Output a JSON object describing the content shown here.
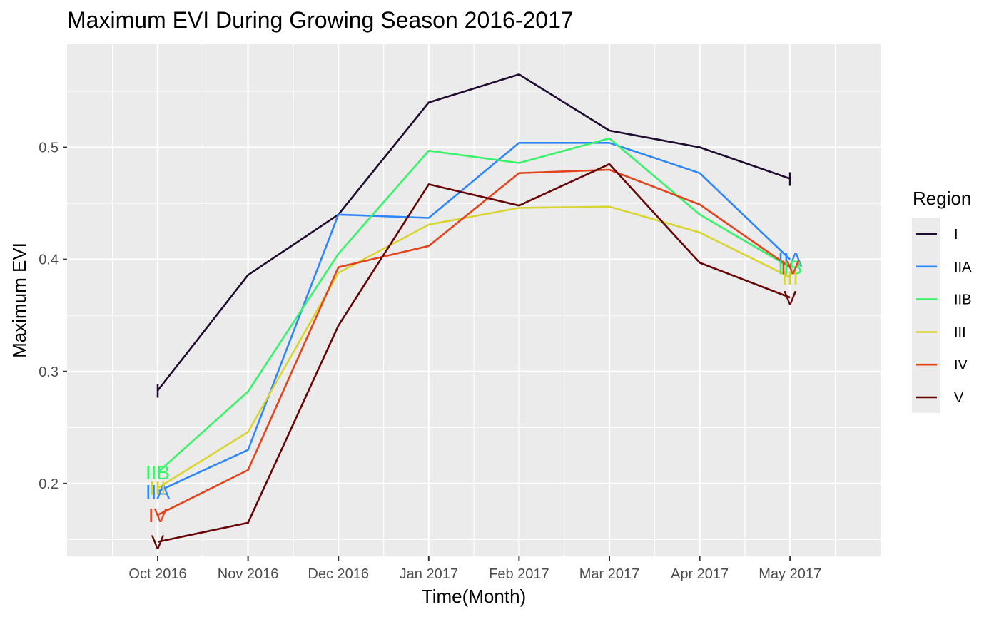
{
  "chart_data": {
    "type": "line",
    "title": "Maximum EVI During Growing Season 2016-2017",
    "xlabel": "Time(Month)",
    "ylabel": "Maximum EVI",
    "x": [
      "Oct 2016",
      "Nov 2016",
      "Dec 2016",
      "Jan 2017",
      "Feb 2017",
      "Mar 2017",
      "Apr 2017",
      "May 2017"
    ],
    "y_ticks": [
      "0.2",
      "0.3",
      "0.4",
      "0.5"
    ],
    "ylim": [
      0.135,
      0.592
    ],
    "grid": true,
    "legend": {
      "title": "Region",
      "position": "right"
    },
    "series": [
      {
        "name": "I",
        "color": "#1f0b2e",
        "values": [
          0.283,
          0.386,
          0.44,
          0.54,
          0.565,
          0.515,
          0.5,
          0.472
        ]
      },
      {
        "name": "IIA",
        "color": "#2e86fc",
        "values": [
          0.193,
          0.23,
          0.44,
          0.437,
          0.504,
          0.504,
          0.477,
          0.4
        ]
      },
      {
        "name": "IIB",
        "color": "#38f36a",
        "values": [
          0.21,
          0.282,
          0.405,
          0.497,
          0.486,
          0.508,
          0.44,
          0.393
        ]
      },
      {
        "name": "III",
        "color": "#d8d530",
        "values": [
          0.196,
          0.246,
          0.388,
          0.431,
          0.446,
          0.447,
          0.424,
          0.384
        ]
      },
      {
        "name": "IV",
        "color": "#e3441c",
        "values": [
          0.172,
          0.212,
          0.393,
          0.412,
          0.477,
          0.48,
          0.449,
          0.393
        ]
      },
      {
        "name": "V",
        "color": "#670405",
        "values": [
          0.148,
          0.165,
          0.341,
          0.467,
          0.448,
          0.485,
          0.397,
          0.366
        ]
      }
    ]
  }
}
